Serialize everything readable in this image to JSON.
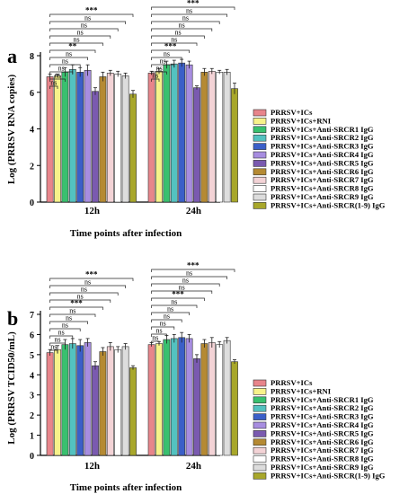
{
  "legend_colors": [
    "#e8858b",
    "#f7f28a",
    "#39c06f",
    "#53c2c0",
    "#3b5fc8",
    "#a78de0",
    "#7a5ab0",
    "#b58a33",
    "#f3d3d6",
    "#ffffff",
    "#dddddd",
    "#a8a72a"
  ],
  "chart_data": [
    {
      "type": "bar",
      "panel": "a",
      "ylabel": "Log (PRRSV RNA copies)",
      "xlabel": "Time points after infection",
      "categories": [
        "12h",
        "24h"
      ],
      "ylim": [
        0,
        8
      ],
      "yticks": [
        "0",
        "2",
        "4",
        "6",
        "8"
      ],
      "legend_placement": "right",
      "series": [
        {
          "name": "PRRSV+ICs",
          "values": [
            6.85,
            7.05
          ]
        },
        {
          "name": "PRRSV+ICs+RNI",
          "values": [
            6.9,
            7.15
          ]
        },
        {
          "name": "PRRSV+ICs+Anti-SRCR1 IgG",
          "values": [
            7.1,
            7.5
          ]
        },
        {
          "name": "PRRSV+ICs+Anti-SRCR2 IgG",
          "values": [
            7.25,
            7.55
          ]
        },
        {
          "name": "PRRSV+ICs+Anti-SRCR3 IgG",
          "values": [
            7.1,
            7.6
          ]
        },
        {
          "name": "PRRSV+ICs+Anti-SRCR4 IgG",
          "values": [
            7.2,
            7.5
          ]
        },
        {
          "name": "PRRSV+ICs+Anti-SRCR5 IgG",
          "values": [
            6.05,
            6.25
          ]
        },
        {
          "name": "PRRSV+ICs+Anti-SRCR6 IgG",
          "values": [
            6.85,
            7.1
          ]
        },
        {
          "name": "PRRSV+ICs+Anti-SRCR7 IgG",
          "values": [
            7.05,
            7.15
          ]
        },
        {
          "name": "PRRSV+ICs+Anti-SRCR8 IgG",
          "values": [
            7.0,
            7.1
          ]
        },
        {
          "name": "PRRSV+ICs+Anti-SRCR9 IgG",
          "values": [
            6.9,
            7.1
          ]
        },
        {
          "name": "PRRSV+ICs+Anti-SRCR(1-9) IgG",
          "values": [
            5.9,
            6.2
          ]
        }
      ],
      "errors": [
        [
          0.15,
          0.1
        ],
        [
          0.1,
          0.15
        ],
        [
          0.25,
          0.2
        ],
        [
          0.25,
          0.2
        ],
        [
          0.25,
          0.2
        ],
        [
          0.3,
          0.2
        ],
        [
          0.2,
          0.1
        ],
        [
          0.25,
          0.2
        ],
        [
          0.15,
          0.15
        ],
        [
          0.15,
          0.1
        ],
        [
          0.15,
          0.15
        ],
        [
          0.2,
          0.3
        ]
      ],
      "annotations": [
        {
          "group": "12h",
          "labels": [
            "***",
            "ns",
            "ns",
            "ns",
            "ns",
            "**",
            "ns",
            "ns",
            "ns",
            "ns",
            "ns"
          ]
        },
        {
          "group": "24h",
          "labels": [
            "***",
            "ns",
            "ns",
            "ns",
            "ns",
            "ns",
            "***",
            "ns",
            "ns",
            "ns",
            "ns"
          ]
        }
      ]
    },
    {
      "type": "bar",
      "panel": "b",
      "ylabel": "Log (PRRSV TCID50/mL)",
      "xlabel": "Time points after infection",
      "categories": [
        "12h",
        "24h"
      ],
      "ylim": [
        0,
        7
      ],
      "yticks": [
        "0",
        "1",
        "2",
        "3",
        "4",
        "5",
        "6",
        "7"
      ],
      "legend_placement": "right",
      "series": [
        {
          "name": "PRRSV+ICs",
          "values": [
            5.1,
            5.5
          ]
        },
        {
          "name": "PRRSV+ICs+RNI",
          "values": [
            5.25,
            5.55
          ]
        },
        {
          "name": "PRRSV+ICs+Anti-SRCR1 IgG",
          "values": [
            5.5,
            5.75
          ]
        },
        {
          "name": "PRRSV+ICs+Anti-SRCR2 IgG",
          "values": [
            5.55,
            5.8
          ]
        },
        {
          "name": "PRRSV+ICs+Anti-SRCR3 IgG",
          "values": [
            5.45,
            5.85
          ]
        },
        {
          "name": "PRRSV+ICs+Anti-SRCR4 IgG",
          "values": [
            5.6,
            5.8
          ]
        },
        {
          "name": "PRRSV+ICs+Anti-SRCR5 IgG",
          "values": [
            4.45,
            4.8
          ]
        },
        {
          "name": "PRRSV+ICs+Anti-SRCR6 IgG",
          "values": [
            5.15,
            5.55
          ]
        },
        {
          "name": "PRRSV+ICs+Anti-SRCR7 IgG",
          "values": [
            5.4,
            5.6
          ]
        },
        {
          "name": "PRRSV+ICs+Anti-SRCR8 IgG",
          "values": [
            5.25,
            5.5
          ]
        },
        {
          "name": "PRRSV+ICs+Anti-SRCR9 IgG",
          "values": [
            5.4,
            5.7
          ]
        },
        {
          "name": "PRRSV+ICs+Anti-SRCR(1-9) IgG",
          "values": [
            4.35,
            4.65
          ]
        }
      ],
      "errors": [
        [
          0.15,
          0.1
        ],
        [
          0.2,
          0.1
        ],
        [
          0.25,
          0.2
        ],
        [
          0.25,
          0.2
        ],
        [
          0.3,
          0.25
        ],
        [
          0.2,
          0.2
        ],
        [
          0.2,
          0.2
        ],
        [
          0.2,
          0.2
        ],
        [
          0.2,
          0.25
        ],
        [
          0.15,
          0.15
        ],
        [
          0.15,
          0.15
        ],
        [
          0.1,
          0.1
        ]
      ],
      "annotations": [
        {
          "group": "12h",
          "labels": [
            "***",
            "ns",
            "ns",
            "ns",
            "***",
            "ns",
            "ns",
            "ns",
            "ns",
            "ns",
            "ns"
          ]
        },
        {
          "group": "24h",
          "labels": [
            "***",
            "ns",
            "ns",
            "ns",
            "***",
            "ns",
            "ns",
            "ns",
            "ns",
            "ns",
            "ns"
          ]
        }
      ]
    }
  ]
}
